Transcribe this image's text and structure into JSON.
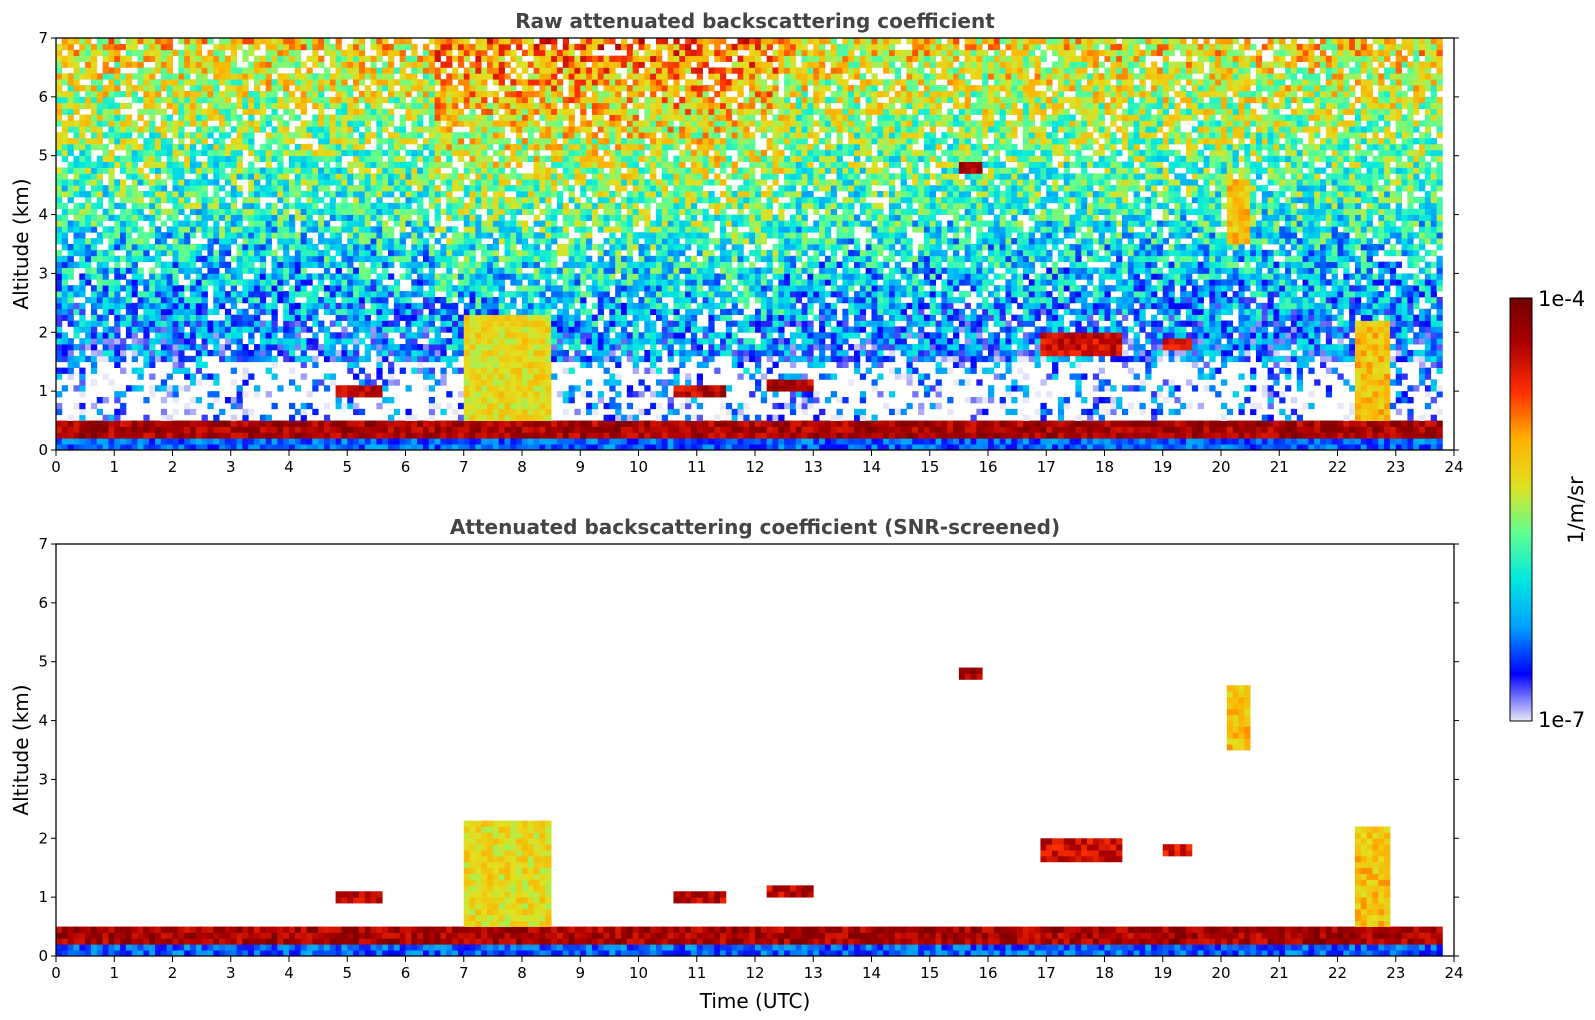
{
  "chart_data": [
    {
      "type": "heatmap",
      "title": "Raw attenuated backscattering coefficient",
      "xlabel": "",
      "ylabel": "Altitude (km)",
      "xlim": [
        0,
        24
      ],
      "ylim": [
        0,
        7
      ],
      "xticks": [
        "0",
        "1",
        "2",
        "3",
        "4",
        "5",
        "6",
        "7",
        "8",
        "9",
        "10",
        "11",
        "12",
        "13",
        "14",
        "15",
        "16",
        "17",
        "18",
        "19",
        "20",
        "21",
        "22",
        "23",
        "24"
      ],
      "yticks": [
        "0",
        "1",
        "2",
        "3",
        "4",
        "5",
        "6",
        "7"
      ],
      "layers": [
        {
          "name": "boundary-layer",
          "x0": 0,
          "x1": 23.8,
          "y0": 0.25,
          "y1": 0.5,
          "level": 0.98
        },
        {
          "name": "cloud",
          "x0": 4.8,
          "x1": 5.6,
          "y0": 0.9,
          "y1": 1.05,
          "level": 0.95
        },
        {
          "name": "cloud",
          "x0": 10.6,
          "x1": 11.5,
          "y0": 0.95,
          "y1": 1.05,
          "level": 0.95
        },
        {
          "name": "cloud",
          "x0": 12.2,
          "x1": 13.0,
          "y0": 1.05,
          "y1": 1.2,
          "level": 0.95
        },
        {
          "name": "cloud",
          "x0": 15.5,
          "x1": 15.9,
          "y0": 4.65,
          "y1": 4.85,
          "level": 0.97
        },
        {
          "name": "cloud",
          "x0": 16.9,
          "x1": 18.3,
          "y0": 1.6,
          "y1": 2.05,
          "level": 0.93
        },
        {
          "name": "cloud",
          "x0": 19.0,
          "x1": 19.5,
          "y0": 1.7,
          "y1": 1.9,
          "level": 0.9
        },
        {
          "name": "plume",
          "x0": 7.0,
          "x1": 8.5,
          "y0": 0.5,
          "y1": 2.3,
          "level": 0.65
        },
        {
          "name": "plume",
          "x0": 22.3,
          "x1": 22.9,
          "y0": 0.5,
          "y1": 2.2,
          "level": 0.7
        },
        {
          "name": "plume",
          "x0": 20.1,
          "x1": 20.5,
          "y0": 3.5,
          "y1": 4.6,
          "level": 0.7
        }
      ]
    },
    {
      "type": "heatmap",
      "title": "Attenuated backscattering coefficient (SNR-screened)",
      "xlabel": "Time (UTC)",
      "ylabel": "Altitude (km)",
      "xlim": [
        0,
        24
      ],
      "ylim": [
        0,
        7
      ],
      "xticks": [
        "0",
        "1",
        "2",
        "3",
        "4",
        "5",
        "6",
        "7",
        "8",
        "9",
        "10",
        "11",
        "12",
        "13",
        "14",
        "15",
        "16",
        "17",
        "18",
        "19",
        "20",
        "21",
        "22",
        "23",
        "24"
      ],
      "yticks": [
        "0",
        "1",
        "2",
        "3",
        "4",
        "5",
        "6",
        "7"
      ],
      "screened": true
    }
  ],
  "colorbar": {
    "max_label": "1e-4",
    "min_label": "1e-7",
    "unit_label": "1/m/sr",
    "stops": [
      "#e8e8f8",
      "#0000ff",
      "#00a0ff",
      "#00e8e0",
      "#60ff90",
      "#e0e020",
      "#ffb000",
      "#ff3000",
      "#b00000",
      "#700000"
    ]
  }
}
